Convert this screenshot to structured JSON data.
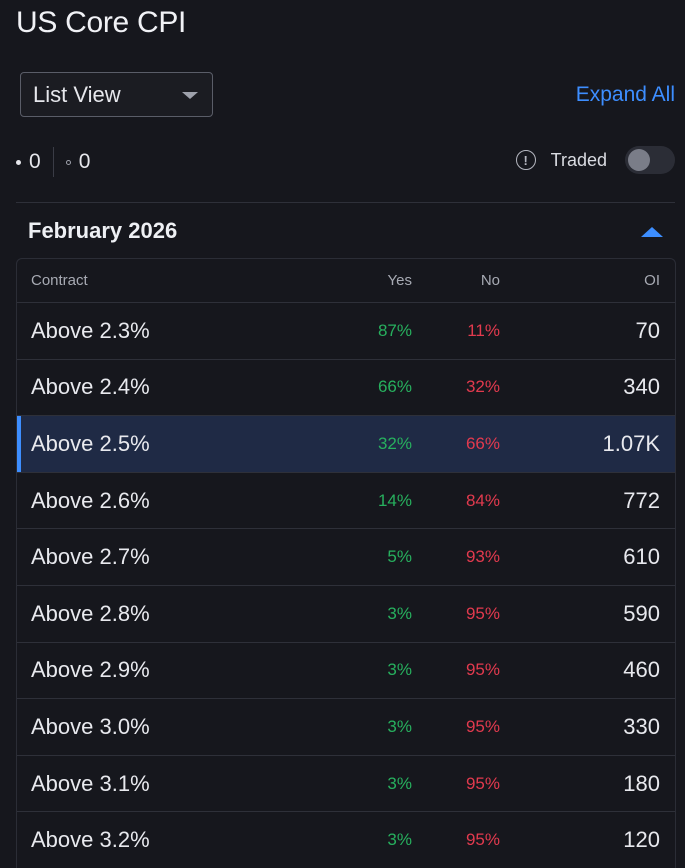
{
  "page": {
    "title": "US Core CPI"
  },
  "controls": {
    "view_select": "List View",
    "expand_all": "Expand All",
    "count_a": "0",
    "count_b": "0",
    "traded_label": "Traded",
    "traded_on": false
  },
  "section": {
    "title": "February 2026"
  },
  "table": {
    "headers": {
      "contract": "Contract",
      "yes": "Yes",
      "no": "No",
      "oi": "OI"
    },
    "rows": [
      {
        "contract": "Above 2.3%",
        "yes": "87%",
        "no": "11%",
        "oi": "70"
      },
      {
        "contract": "Above 2.4%",
        "yes": "66%",
        "no": "32%",
        "oi": "340"
      },
      {
        "contract": "Above 2.5%",
        "yes": "32%",
        "no": "66%",
        "oi": "1.07K"
      },
      {
        "contract": "Above 2.6%",
        "yes": "14%",
        "no": "84%",
        "oi": "772"
      },
      {
        "contract": "Above 2.7%",
        "yes": "5%",
        "no": "93%",
        "oi": "610"
      },
      {
        "contract": "Above 2.8%",
        "yes": "3%",
        "no": "95%",
        "oi": "590"
      },
      {
        "contract": "Above 2.9%",
        "yes": "3%",
        "no": "95%",
        "oi": "460"
      },
      {
        "contract": "Above 3.0%",
        "yes": "3%",
        "no": "95%",
        "oi": "330"
      },
      {
        "contract": "Above 3.1%",
        "yes": "3%",
        "no": "95%",
        "oi": "180"
      },
      {
        "contract": "Above 3.2%",
        "yes": "3%",
        "no": "95%",
        "oi": "120"
      }
    ]
  },
  "colors": {
    "accent": "#3d8eff",
    "yes": "#27b05e",
    "no": "#e23a4e",
    "selected_row": "#1f2a45",
    "background": "#16171d"
  },
  "icons": {
    "caret": "chevron-down-icon",
    "info": "info-circle-icon",
    "collapse": "chevron-up-icon"
  }
}
